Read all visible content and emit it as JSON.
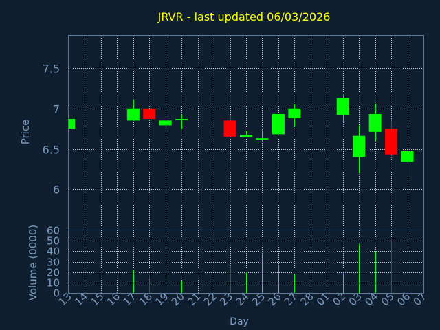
{
  "chart_data": {
    "type": "candlestick",
    "title": "JRVR - last updated 06/03/2026",
    "xlabel": "Day",
    "price_panel": {
      "ylabel": "Price",
      "ylim": [
        5.5,
        7.9
      ],
      "yticks": [
        "7.5",
        "7",
        "6.5",
        "6"
      ],
      "ytick_values": [
        7.5,
        7.0,
        6.5,
        6.0
      ]
    },
    "volume_panel": {
      "ylabel": "Volume (0000)",
      "ylim": [
        0,
        60
      ],
      "yticks": [
        "60",
        "50",
        "40",
        "30",
        "20",
        "10",
        "0"
      ],
      "ytick_values": [
        60,
        50,
        40,
        30,
        20,
        10,
        0
      ]
    },
    "x_ticks": [
      "13",
      "14",
      "15",
      "16",
      "17",
      "18",
      "19",
      "20",
      "21",
      "22",
      "23",
      "24",
      "25",
      "26",
      "27",
      "28",
      "01",
      "02",
      "03",
      "04",
      "05",
      "06",
      "07"
    ],
    "candles": [
      {
        "x": "13",
        "open": 6.75,
        "close": 6.87,
        "high": 6.87,
        "low": 6.75,
        "volume": 0
      },
      {
        "x": "17",
        "open": 6.85,
        "close": 7.0,
        "high": 7.11,
        "low": 6.85,
        "volume": 22
      },
      {
        "x": "18",
        "open": 7.0,
        "close": 6.87,
        "high": 7.0,
        "low": 6.87,
        "volume": 15
      },
      {
        "x": "19",
        "open": 6.79,
        "close": 6.85,
        "high": 6.9,
        "low": 6.76,
        "volume": 15
      },
      {
        "x": "20",
        "open": 6.86,
        "close": 6.87,
        "high": 6.92,
        "low": 6.74,
        "volume": 12
      },
      {
        "x": "23",
        "open": 6.85,
        "close": 6.65,
        "high": 6.92,
        "low": 6.65,
        "volume": 25
      },
      {
        "x": "24",
        "open": 6.64,
        "close": 6.67,
        "high": 6.72,
        "low": 6.64,
        "volume": 20
      },
      {
        "x": "25",
        "open": 6.62,
        "close": 6.63,
        "high": 6.74,
        "low": 6.59,
        "volume": 37
      },
      {
        "x": "26",
        "open": 6.68,
        "close": 6.93,
        "high": 6.93,
        "low": 6.68,
        "volume": 27
      },
      {
        "x": "27",
        "open": 6.88,
        "close": 7.0,
        "high": 7.05,
        "low": 6.77,
        "volume": 18
      },
      {
        "x": "02",
        "open": 6.92,
        "close": 7.13,
        "high": 7.17,
        "low": 6.82,
        "volume": 19
      },
      {
        "x": "03",
        "open": 6.4,
        "close": 6.66,
        "high": 6.79,
        "low": 6.2,
        "volume": 47
      },
      {
        "x": "04",
        "open": 6.71,
        "close": 6.93,
        "high": 7.06,
        "low": 6.6,
        "volume": 40
      },
      {
        "x": "05",
        "open": 6.75,
        "close": 6.43,
        "high": 6.87,
        "low": 6.41,
        "volume": 51
      },
      {
        "x": "06",
        "open": 6.34,
        "close": 6.47,
        "high": 6.47,
        "low": 6.16,
        "volume": 40
      }
    ],
    "colors": {
      "up": "#00ff00",
      "down": "#ff0000",
      "background": "#0f1f30",
      "axis_text": "#7a9bbf",
      "title": "#ffff00",
      "frame": "#5a7a9a",
      "grid": "#ffffff"
    },
    "grid": true
  }
}
